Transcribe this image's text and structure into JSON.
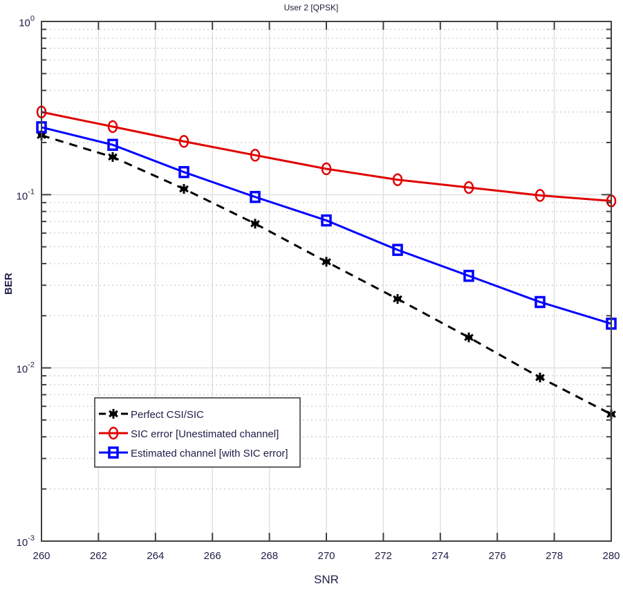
{
  "chart_data": {
    "type": "line",
    "title": "User 2 [QPSK]",
    "xlabel": "SNR",
    "ylabel": "BER",
    "yscale": "log",
    "xlim": [
      260,
      280
    ],
    "ylim": [
      0.001,
      1
    ],
    "grid": true,
    "minor_grid": true,
    "legend_position": "lower left",
    "x": [
      260,
      262.5,
      265,
      267.5,
      270,
      272.5,
      275,
      277.5,
      280
    ],
    "x_ticks": [
      "260",
      "262",
      "264",
      "266",
      "268",
      "270",
      "272",
      "274",
      "276",
      "278",
      "280"
    ],
    "y_ticks": [
      {
        "base": "10",
        "exp": "0",
        "value": 1
      },
      {
        "base": "10",
        "exp": "-1",
        "value": 0.1
      },
      {
        "base": "10",
        "exp": "-2",
        "value": 0.01
      },
      {
        "base": "10",
        "exp": "-3",
        "value": 0.001
      }
    ],
    "series": [
      {
        "name": "Perfect CSI/SIC",
        "color": "#000000",
        "line_style": "dashed",
        "marker": "asterisk",
        "values": [
          0.22,
          0.165,
          0.108,
          0.068,
          0.041,
          0.025,
          0.015,
          0.0088,
          0.0054
        ]
      },
      {
        "name": "SIC error [Unestimated channel]",
        "color": "#e00000",
        "line_style": "solid",
        "marker": "circle",
        "values": [
          0.3,
          0.247,
          0.203,
          0.169,
          0.141,
          0.122,
          0.11,
          0.099,
          0.092
        ]
      },
      {
        "name": "Estimated channel [with SIC error]",
        "color": "#0000ff",
        "line_style": "solid",
        "marker": "square",
        "values": [
          0.245,
          0.194,
          0.135,
          0.097,
          0.071,
          0.048,
          0.034,
          0.024,
          0.018
        ]
      }
    ]
  },
  "colors": {
    "axis": "#404040",
    "major_grid": "#e0e0e0",
    "minor_grid": "#c8c8c8",
    "text": "#20204a"
  }
}
